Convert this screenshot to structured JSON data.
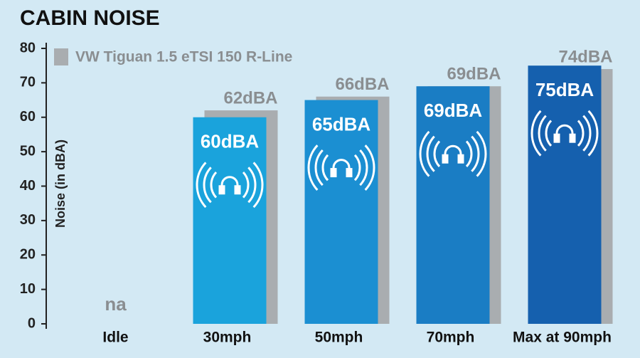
{
  "chart_data": {
    "type": "bar",
    "title": "CABIN NOISE",
    "y_label": "Noise (in dBA)",
    "categories": [
      "Idle",
      "30mph",
      "50mph",
      "70mph",
      "Max at 90mph"
    ],
    "series": [
      {
        "colors": [
          "#1aa3dc",
          "#1aa3dc",
          "#1b8fd2",
          "#1a7dc4",
          "#1560ae"
        ],
        "values": [
          null,
          60,
          65,
          69,
          75
        ],
        "value_labels": [
          "na",
          "60dBA",
          "65dBA",
          "69dBA",
          "75dBA"
        ]
      },
      {
        "name": "VW Tiguan 1.5 eTSI 150 R-Line",
        "color": "#a9adb0",
        "values": [
          null,
          62,
          66,
          69,
          74
        ],
        "value_labels": [
          null,
          "62dBA",
          "66dBA",
          "69dBA",
          "74dBA"
        ]
      }
    ],
    "ylim": [
      0,
      80
    ],
    "yticks": [
      0,
      10,
      20,
      30,
      40,
      50,
      60,
      70,
      80
    ]
  }
}
